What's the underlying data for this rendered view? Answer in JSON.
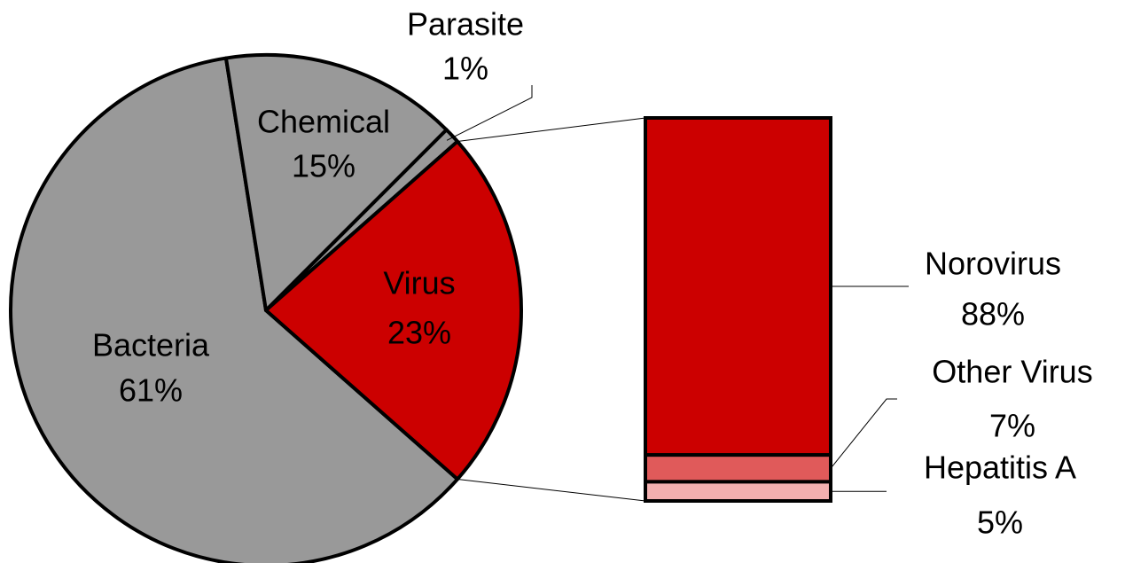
{
  "chart_data": {
    "type": "pie",
    "categories": [
      "Bacteria",
      "Chemical",
      "Parasite",
      "Virus"
    ],
    "values": [
      61,
      15,
      1,
      23
    ],
    "value_labels": [
      "61%",
      "15%",
      "1%",
      "23%"
    ],
    "colors": [
      "#999999",
      "#999999",
      "#999999",
      "#cc0000"
    ],
    "detail": {
      "type": "bar",
      "categories": [
        "Norovirus",
        "Other Virus",
        "Hepatitis A"
      ],
      "values": [
        88,
        7,
        5
      ],
      "value_labels": [
        "88%",
        "7%",
        "5%"
      ],
      "colors": [
        "#cc0000",
        "#e05a5a",
        "#f2b0b0"
      ]
    }
  }
}
